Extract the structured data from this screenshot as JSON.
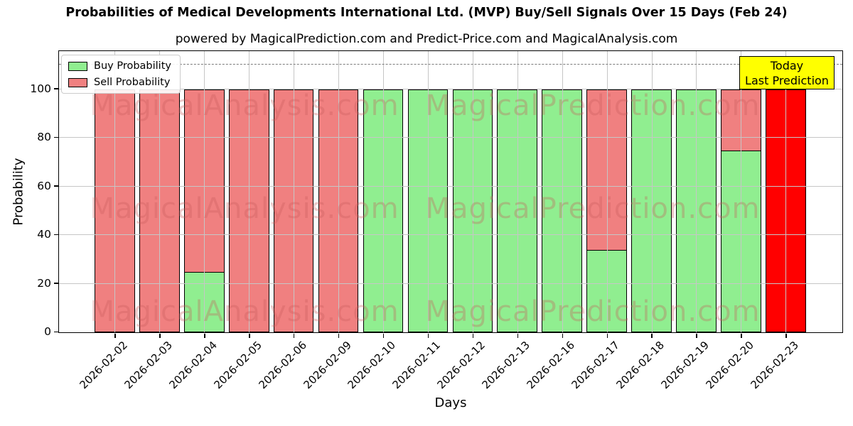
{
  "title": "Probabilities of Medical Developments International Ltd. (MVP) Buy/Sell Signals Over 15 Days (Feb 24)",
  "subtitle": "powered by MagicalPrediction.com and Predict-Price.com and MagicalAnalysis.com",
  "legend": {
    "items": [
      {
        "key": "buy",
        "label": "Buy Probability",
        "color": "#90ee90"
      },
      {
        "key": "sell",
        "label": "Sell Probability",
        "color": "#f08080"
      }
    ]
  },
  "annotation": {
    "line1": "Today",
    "line2": "Last Prediction",
    "bg": "#ffff00"
  },
  "watermarks": {
    "left": "MagicalAnalysis.com",
    "right": "MagicalPrediction.com"
  },
  "axes": {
    "xlabel": "Days",
    "ylabel": "Probability",
    "yticks": [
      0,
      20,
      40,
      60,
      80,
      100
    ],
    "ylim": [
      0,
      115
    ],
    "dashed_line_y": 110,
    "grid": true
  },
  "colors": {
    "buy": "#90ee90",
    "sell": "#f08080",
    "today_bar": "#ff0000",
    "bar_edge": "#000000",
    "grid": "#c6c6c6",
    "dashed_line": "#7a7a7a",
    "annotation_bg": "#ffff00",
    "annotation_border": "#000000",
    "watermark": "rgba(200,90,90,0.32)"
  },
  "chart_data": {
    "type": "bar",
    "stacked": true,
    "title": "Probabilities of Medical Developments International Ltd. (MVP) Buy/Sell Signals Over 15 Days (Feb 24)",
    "xlabel": "Days",
    "ylabel": "Probability",
    "ylim": [
      0,
      115
    ],
    "grid": true,
    "legend_position": "upper left",
    "categories": [
      "2026-02-02",
      "2026-02-03",
      "2026-02-04",
      "2026-02-05",
      "2026-02-06",
      "2026-02-09",
      "2026-02-10",
      "2026-02-11",
      "2026-02-12",
      "2026-02-13",
      "2026-02-16",
      "2026-02-17",
      "2026-02-18",
      "2026-02-19",
      "2026-02-20",
      "2026-02-23"
    ],
    "series": [
      {
        "name": "Buy Probability",
        "key": "buy",
        "color": "#90ee90",
        "values": [
          0,
          0,
          25,
          0,
          0,
          0,
          100,
          100,
          100,
          100,
          100,
          34,
          100,
          100,
          75,
          0
        ]
      },
      {
        "name": "Sell Probability",
        "key": "sell",
        "color": "#f08080",
        "values": [
          100,
          100,
          75,
          100,
          100,
          100,
          0,
          0,
          0,
          0,
          0,
          66,
          0,
          0,
          25,
          0
        ]
      },
      {
        "name": "Today Last Prediction",
        "key": "today",
        "color": "#ff0000",
        "values": [
          0,
          0,
          0,
          0,
          0,
          0,
          0,
          0,
          0,
          0,
          0,
          0,
          0,
          0,
          0,
          100
        ]
      }
    ],
    "annotations": [
      {
        "type": "label",
        "text": "Today Last Prediction",
        "x": "2026-02-23",
        "y": 110
      },
      {
        "type": "hline",
        "y": 110,
        "style": "dashed"
      }
    ]
  }
}
